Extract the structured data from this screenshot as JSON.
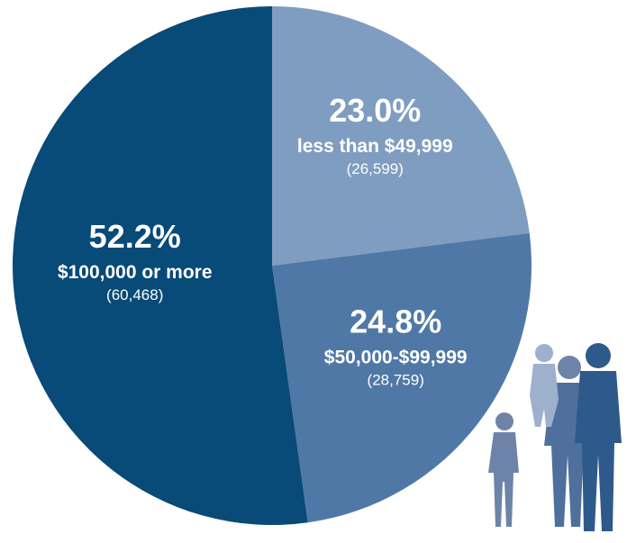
{
  "chart_data": {
    "type": "pie",
    "categories": [
      "less than $49,999",
      "$50,000-$99,999",
      "$100,000 or more"
    ],
    "values": [
      23.0,
      24.8,
      52.2
    ],
    "value_labels": [
      "23.0%",
      "24.8%",
      "52.2%"
    ],
    "count_labels": [
      "(26,599)",
      "(28,759)",
      "(60,468)"
    ],
    "colors": [
      "#7f9dc0",
      "#4f78a6",
      "#084a78"
    ]
  }
}
